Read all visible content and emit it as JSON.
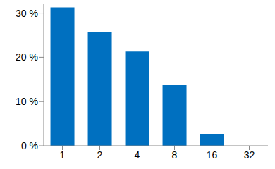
{
  "chart_data": {
    "type": "bar",
    "categories": [
      "1",
      "2",
      "4",
      "8",
      "16",
      "32"
    ],
    "values": [
      31.3,
      25.8,
      21.3,
      13.7,
      2.6,
      0
    ],
    "color": "#0070c0",
    "ylim": [
      0,
      32
    ],
    "yticks": [
      {
        "value": 0,
        "label": "0 %"
      },
      {
        "value": 10,
        "label": "10 %"
      },
      {
        "value": 20,
        "label": "20 %"
      },
      {
        "value": 30,
        "label": "30 %"
      }
    ],
    "grid": false
  }
}
